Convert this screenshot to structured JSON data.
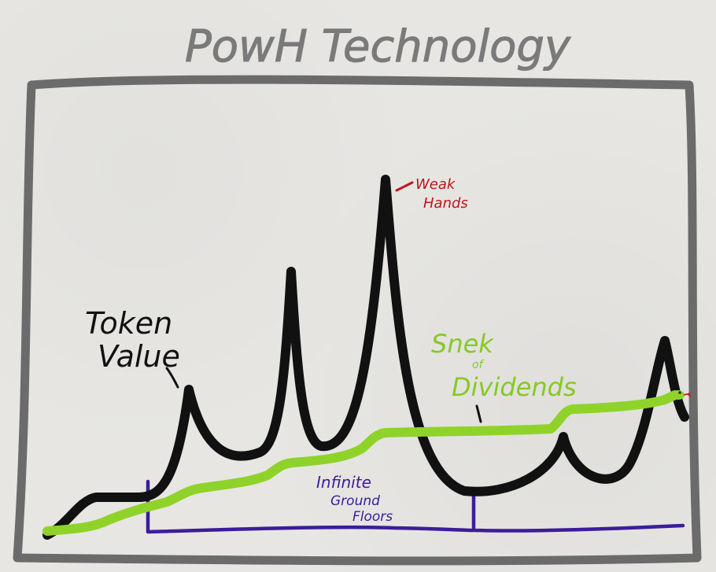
{
  "title": "PowH Technology",
  "labels": {
    "token_value": [
      "Token",
      "Value"
    ],
    "weak_hands": [
      "Weak",
      "Hands"
    ],
    "snek": [
      "Snek",
      "of",
      "Dividends"
    ],
    "floors": [
      "Infinite",
      "Ground",
      "Floors"
    ]
  },
  "colors": {
    "frame": "#6b6b6b",
    "title": "#7a7a7a",
    "token_line": "#111111",
    "snek_line": "#8fd32a",
    "floor_line": "#3a1d9a",
    "weak_hands_text": "#c0141c",
    "snek_text": "#86c924",
    "floors_text": "#3a1d9a"
  }
}
